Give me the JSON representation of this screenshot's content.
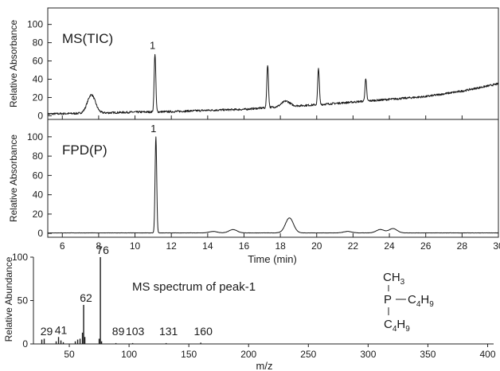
{
  "chart_data": [
    {
      "type": "line",
      "panel": "top",
      "label": "MS(TIC)",
      "ylabel": "Relative Absorbance",
      "xlim": [
        5.2,
        30
      ],
      "ylim": [
        -4,
        118
      ],
      "yticks": [
        0,
        20,
        40,
        60,
        80,
        100
      ],
      "baseline": [
        [
          5.2,
          2
        ],
        [
          8,
          3
        ],
        [
          10,
          4
        ],
        [
          12,
          4.5
        ],
        [
          14,
          6
        ],
        [
          16,
          7
        ],
        [
          18,
          10
        ],
        [
          20,
          12
        ],
        [
          22,
          15
        ],
        [
          24,
          18
        ],
        [
          26,
          21
        ],
        [
          28,
          27
        ],
        [
          30,
          35
        ]
      ],
      "peaks": [
        {
          "x": 7.6,
          "y": 23
        },
        {
          "x": 11.1,
          "y": 68,
          "label": "1"
        },
        {
          "x": 17.3,
          "y": 56
        },
        {
          "x": 18.3,
          "y": 16
        },
        {
          "x": 20.1,
          "y": 52
        },
        {
          "x": 22.7,
          "y": 40
        }
      ]
    },
    {
      "type": "line",
      "panel": "middle",
      "label": "FPD(P)",
      "ylabel": "Relative Absorbance",
      "xlabel": "Time (min)",
      "xlim": [
        5.2,
        30
      ],
      "ylim": [
        -4,
        118
      ],
      "yticks": [
        0,
        20,
        40,
        60,
        80,
        100
      ],
      "xticks": [
        6,
        8,
        10,
        12,
        14,
        16,
        18,
        20,
        22,
        24,
        26,
        28,
        30
      ],
      "baseline": [
        [
          5.2,
          0.5
        ],
        [
          30,
          0.5
        ]
      ],
      "peaks": [
        {
          "x": 11.15,
          "y": 100,
          "label": "1"
        },
        {
          "x": 14.3,
          "y": 2
        },
        {
          "x": 15.4,
          "y": 4
        },
        {
          "x": 18.5,
          "y": 16
        },
        {
          "x": 21.7,
          "y": 2
        },
        {
          "x": 23.5,
          "y": 4
        },
        {
          "x": 24.2,
          "y": 5
        }
      ]
    },
    {
      "type": "bar",
      "panel": "bottom",
      "title": "MS spectrum of peak-1",
      "ylabel": "Relative Abundance",
      "xlabel": "m/z",
      "xlim": [
        20,
        405
      ],
      "ylim": [
        0,
        100
      ],
      "yticks": [
        0,
        50,
        100
      ],
      "xticks": [
        50,
        100,
        150,
        200,
        250,
        300,
        350,
        400
      ],
      "peaks": [
        {
          "mz": 27,
          "intensity": 5
        },
        {
          "mz": 29,
          "intensity": 6,
          "label": "29"
        },
        {
          "mz": 39,
          "intensity": 3
        },
        {
          "mz": 41,
          "intensity": 8,
          "label": "41"
        },
        {
          "mz": 43,
          "intensity": 4
        },
        {
          "mz": 45,
          "intensity": 2
        },
        {
          "mz": 55,
          "intensity": 3
        },
        {
          "mz": 57,
          "intensity": 5
        },
        {
          "mz": 59,
          "intensity": 6
        },
        {
          "mz": 61,
          "intensity": 13
        },
        {
          "mz": 62,
          "intensity": 45,
          "label": "62"
        },
        {
          "mz": 63,
          "intensity": 8
        },
        {
          "mz": 75,
          "intensity": 6
        },
        {
          "mz": 76,
          "intensity": 100,
          "label": "76"
        },
        {
          "mz": 77,
          "intensity": 3
        },
        {
          "mz": 89,
          "intensity": 1,
          "label": "89"
        },
        {
          "mz": 103,
          "intensity": 1,
          "label": "103"
        },
        {
          "mz": 131,
          "intensity": 1,
          "label": "131"
        },
        {
          "mz": 160,
          "intensity": 1.5,
          "label": "160"
        }
      ],
      "structure": {
        "top": "CH",
        "top_sub": "3",
        "center": "P",
        "right": "C",
        "right_sub1": "4",
        "right_mid": "H",
        "right_sub2": "9",
        "bottom": "C",
        "bottom_sub1": "4",
        "bottom_mid": "H",
        "bottom_sub2": "9"
      }
    }
  ]
}
